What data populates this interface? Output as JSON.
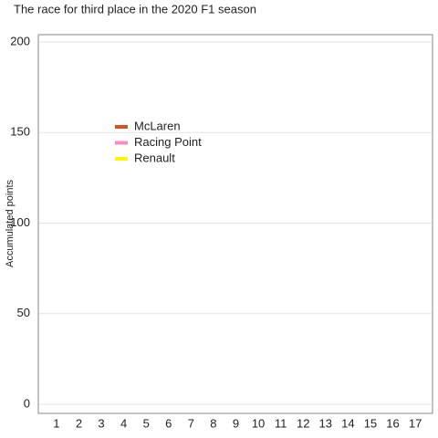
{
  "chart_data": {
    "type": "line",
    "title": "The race for third place in the 2020 F1 season",
    "y_label": "Accumulated points",
    "categories": [
      "1",
      "2",
      "3",
      "4",
      "5",
      "6",
      "7",
      "8",
      "9",
      "10",
      "11",
      "12",
      "13",
      "14",
      "15",
      "16",
      "17"
    ],
    "series": [
      {
        "name": "McLaren",
        "color": "#d35420",
        "values": [
          null,
          null,
          null,
          null,
          null,
          null,
          null,
          null,
          null,
          null,
          null,
          null,
          null,
          null,
          null,
          null,
          null
        ]
      },
      {
        "name": "Racing Point",
        "color": "#f58cc8",
        "values": [
          null,
          null,
          null,
          null,
          null,
          null,
          null,
          null,
          null,
          null,
          null,
          null,
          null,
          null,
          null,
          null,
          null
        ]
      },
      {
        "name": "Renault",
        "color": "#fff500",
        "values": [
          null,
          null,
          null,
          null,
          null,
          null,
          null,
          null,
          null,
          null,
          null,
          null,
          null,
          null,
          null,
          null,
          null
        ]
      }
    ],
    "ylim": [
      -5,
      204
    ],
    "yticks": [
      0,
      50,
      100,
      150,
      200
    ],
    "grid": true
  }
}
